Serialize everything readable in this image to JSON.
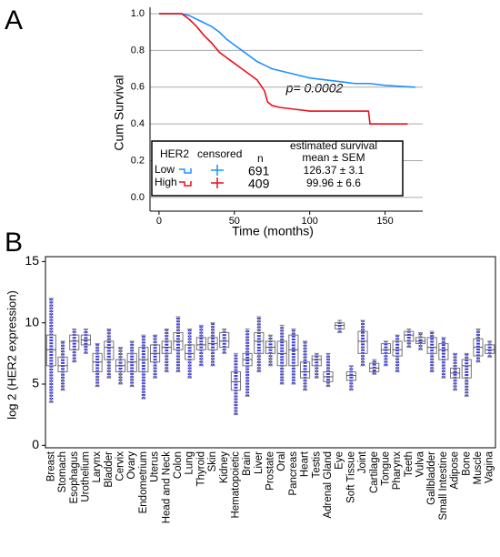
{
  "chart_data": [
    {
      "type": "line",
      "panel": "A",
      "y_label": "Cum Survival",
      "x_label": "Time (months)",
      "annotation": "p= 0.0002",
      "xlim": [
        -6,
        175
      ],
      "ylim": [
        -0.075,
        1.035
      ],
      "xticks": [
        0,
        50,
        100,
        150
      ],
      "yticks": [
        {
          "value": 0,
          "label": "0.0"
        },
        0.2,
        0.4,
        0.6,
        0.8,
        {
          "value": 1,
          "label": "1.0"
        }
      ],
      "grid": true,
      "legend_headers": [
        "HER2",
        "censored",
        "n",
        "estimated survival",
        "mean ± SEM"
      ],
      "series": [
        {
          "name": "Low",
          "color": "#1e90ff",
          "n": 691,
          "mean_sem": "126.37 ± 3.1",
          "x": [
            0,
            15,
            20,
            25,
            30,
            35,
            40,
            45,
            50,
            55,
            60,
            65,
            70,
            75,
            80,
            90,
            100,
            110,
            120,
            130,
            140,
            150,
            170
          ],
          "y": [
            1,
            1,
            0.99,
            0.97,
            0.95,
            0.93,
            0.9,
            0.86,
            0.83,
            0.8,
            0.77,
            0.74,
            0.72,
            0.7,
            0.69,
            0.67,
            0.65,
            0.64,
            0.63,
            0.62,
            0.62,
            0.61,
            0.6
          ]
        },
        {
          "name": "High",
          "color": "#e8101a",
          "n": 409,
          "mean_sem": "99.96 ± 6.6",
          "x": [
            0,
            15,
            20,
            25,
            30,
            35,
            40,
            45,
            50,
            55,
            60,
            65,
            70,
            72,
            75,
            80,
            90,
            100,
            120,
            139,
            140,
            165
          ],
          "y": [
            1,
            1,
            0.97,
            0.93,
            0.88,
            0.84,
            0.79,
            0.76,
            0.73,
            0.7,
            0.67,
            0.64,
            0.58,
            0.52,
            0.5,
            0.49,
            0.48,
            0.47,
            0.47,
            0.47,
            0.4,
            0.4
          ]
        }
      ]
    },
    {
      "type": "box",
      "panel": "B",
      "y_label": "log 2 (HER2 expression)",
      "ylim": [
        -0.2,
        15.4
      ],
      "yticks": [
        0,
        5,
        10,
        15
      ],
      "color": "#1a1ad8",
      "categories": [
        "Breast",
        "Stomach",
        "Esophagus",
        "Urothelium",
        "Larynx",
        "Bladder",
        "Cervix",
        "Ovary",
        "Endometrium",
        "Uterus",
        "Head and Neck",
        "Colon",
        "Lung",
        "Thyroid",
        "Skin",
        "Kidney",
        "Hematopoietic",
        "Brain",
        "Liver",
        "Prostate",
        "Oral",
        "Pancreas",
        "Heart",
        "Testis",
        "Adrenal Gland",
        "Eye",
        "Soft Tissue",
        "Joint",
        "Cartilage",
        "Tongue",
        "Pharynx",
        "Teeth",
        "Vulva",
        "Gallbladder",
        "Small Intestine",
        "Adipose",
        "Bone",
        "Muscle",
        "Vagina"
      ],
      "boxes": [
        {
          "q1": 6.5,
          "median": 7.8,
          "q3": 9.0,
          "low": 3.5,
          "high": 12
        },
        {
          "q1": 6.0,
          "median": 6.5,
          "q3": 7.2,
          "low": 4.5,
          "high": 8.5
        },
        {
          "q1": 7.8,
          "median": 8.5,
          "q3": 9.0,
          "low": 6.8,
          "high": 9.5
        },
        {
          "q1": 8.2,
          "median": 8.6,
          "q3": 9.0,
          "low": 7.5,
          "high": 9.5
        },
        {
          "q1": 6.0,
          "median": 6.8,
          "q3": 7.5,
          "low": 4.8,
          "high": 8.3
        },
        {
          "q1": 7.0,
          "median": 8.0,
          "q3": 8.5,
          "low": 5.5,
          "high": 9.5
        },
        {
          "q1": 6.0,
          "median": 6.5,
          "q3": 7.0,
          "low": 5.0,
          "high": 8.0
        },
        {
          "q1": 6.0,
          "median": 6.8,
          "q3": 7.5,
          "low": 4.8,
          "high": 8.5
        },
        {
          "q1": 6.0,
          "median": 7.0,
          "q3": 8.0,
          "low": 3.8,
          "high": 9.0
        },
        {
          "q1": 6.8,
          "median": 7.5,
          "q3": 8.2,
          "low": 5.5,
          "high": 9.0
        },
        {
          "q1": 7.5,
          "median": 8.0,
          "q3": 8.5,
          "low": 6.0,
          "high": 9.5
        },
        {
          "q1": 7.8,
          "median": 8.5,
          "q3": 9.2,
          "low": 6.0,
          "high": 10.5
        },
        {
          "q1": 7.0,
          "median": 7.5,
          "q3": 8.2,
          "low": 5.5,
          "high": 9.5
        },
        {
          "q1": 7.8,
          "median": 8.2,
          "q3": 8.8,
          "low": 6.5,
          "high": 9.8
        },
        {
          "q1": 7.8,
          "median": 8.3,
          "q3": 8.8,
          "low": 6.5,
          "high": 10.0
        },
        {
          "q1": 8.0,
          "median": 8.5,
          "q3": 9.2,
          "low": 7.5,
          "high": 9.5
        },
        {
          "q1": 4.5,
          "median": 5.2,
          "q3": 6.0,
          "low": 2.5,
          "high": 7.5
        },
        {
          "q1": 6.5,
          "median": 7.0,
          "q3": 7.5,
          "low": 4.0,
          "high": 9.5
        },
        {
          "q1": 7.5,
          "median": 8.5,
          "q3": 9.2,
          "low": 6.0,
          "high": 10.5
        },
        {
          "q1": 7.5,
          "median": 8.0,
          "q3": 8.5,
          "low": 6.5,
          "high": 9.0
        },
        {
          "q1": 6.5,
          "median": 7.5,
          "q3": 8.5,
          "low": 5.0,
          "high": 9.8
        },
        {
          "q1": 6.5,
          "median": 7.8,
          "q3": 9.0,
          "low": 5.0,
          "high": 9.5
        },
        {
          "q1": 5.5,
          "median": 6.0,
          "q3": 6.8,
          "low": 4.5,
          "high": 8.5
        },
        {
          "q1": 6.5,
          "median": 7.0,
          "q3": 7.3,
          "low": 5.5,
          "high": 7.5
        },
        {
          "q1": 5.2,
          "median": 5.6,
          "q3": 6.0,
          "low": 4.8,
          "high": 7.5
        },
        {
          "q1": 9.5,
          "median": 9.8,
          "q3": 10.0,
          "low": 9.2,
          "high": 10.2
        },
        {
          "q1": 5.3,
          "median": 5.7,
          "q3": 6.0,
          "low": 4.5,
          "high": 6.5
        },
        {
          "q1": 7.5,
          "median": 8.5,
          "q3": 9.3,
          "low": 6.5,
          "high": 10.2
        },
        {
          "q1": 6.0,
          "median": 6.3,
          "q3": 6.7,
          "low": 5.8,
          "high": 7.0
        },
        {
          "q1": 7.5,
          "median": 7.8,
          "q3": 8.3,
          "low": 6.5,
          "high": 8.5
        },
        {
          "q1": 7.3,
          "median": 7.8,
          "q3": 8.5,
          "low": 6.0,
          "high": 9.0
        },
        {
          "q1": 8.5,
          "median": 9.0,
          "q3": 9.3,
          "low": 8.0,
          "high": 9.5
        },
        {
          "q1": 8.3,
          "median": 8.5,
          "q3": 8.8,
          "low": 7.8,
          "high": 9.2
        },
        {
          "q1": 7.5,
          "median": 8.0,
          "q3": 8.8,
          "low": 6.0,
          "high": 9.3
        },
        {
          "q1": 7.0,
          "median": 7.8,
          "q3": 8.3,
          "low": 5.5,
          "high": 8.8
        },
        {
          "q1": 5.5,
          "median": 5.9,
          "q3": 6.3,
          "low": 4.5,
          "high": 7.5
        },
        {
          "q1": 5.5,
          "median": 6.5,
          "q3": 7.0,
          "low": 4.0,
          "high": 7.5
        },
        {
          "q1": 7.3,
          "median": 8.0,
          "q3": 8.7,
          "low": 6.8,
          "high": 9.5
        },
        {
          "q1": 7.5,
          "median": 7.8,
          "q3": 8.2,
          "low": 7.2,
          "high": 8.5
        }
      ]
    }
  ]
}
